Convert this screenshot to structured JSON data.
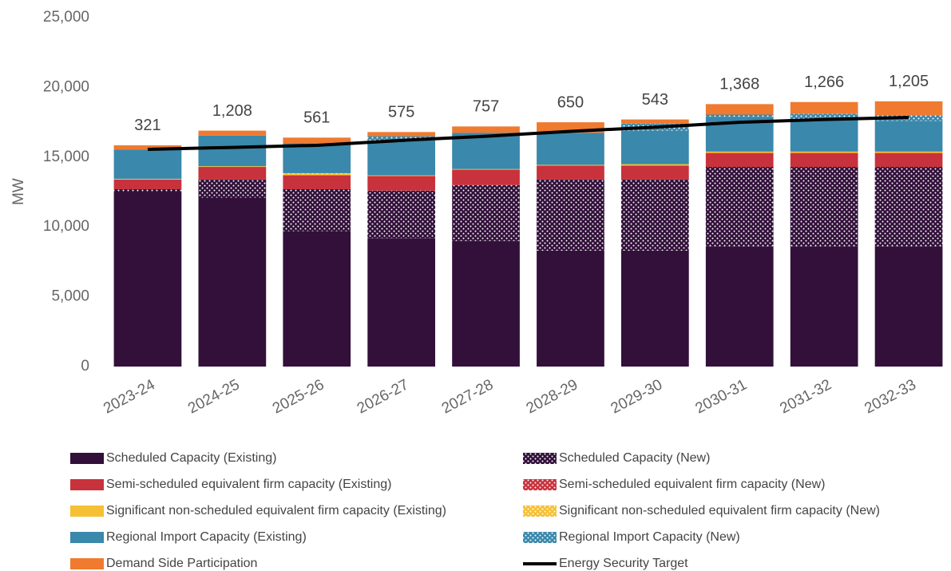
{
  "chart_data": {
    "type": "bar",
    "stacked": true,
    "y_label": "MW",
    "categories": [
      "2023-24",
      "2024-25",
      "2025-26",
      "2026-27",
      "2027-28",
      "2028-29",
      "2029-30",
      "2030-31",
      "2031-32",
      "2032-33"
    ],
    "series": [
      {
        "name": "Scheduled Capacity (Existing)",
        "color": "#32103a",
        "values": [
          12500,
          12100,
          9700,
          9200,
          9000,
          8300,
          8300,
          8600,
          8600,
          8600
        ]
      },
      {
        "name": "Scheduled Capacity (New)",
        "color": "#32103a",
        "pattern": "dots",
        "values": [
          200,
          1300,
          3000,
          3400,
          4000,
          5100,
          5100,
          5700,
          5700,
          5700
        ]
      },
      {
        "name": "Semi-scheduled equivalent firm capacity (Existing)",
        "color": "#c8323c",
        "values": [
          700,
          900,
          1000,
          1050,
          1100,
          1000,
          1000,
          1000,
          1000,
          1000
        ]
      },
      {
        "name": "Semi-scheduled equivalent firm capacity (New)",
        "color": "#c8323c",
        "pattern": "dots",
        "values": [
          0,
          0,
          0,
          0,
          0,
          0,
          0,
          0,
          0,
          0
        ]
      },
      {
        "name": "Significant non-scheduled equivalent firm capacity (Existing)",
        "color": "#f5c033",
        "values": [
          50,
          50,
          100,
          50,
          50,
          50,
          100,
          100,
          100,
          100
        ]
      },
      {
        "name": "Significant non-scheduled equivalent firm capacity (New)",
        "color": "#f5c033",
        "pattern": "dots",
        "values": [
          0,
          0,
          50,
          0,
          0,
          0,
          0,
          0,
          0,
          0
        ]
      },
      {
        "name": "Regional Import Capacity (Existing)",
        "color": "#3a88ab",
        "values": [
          2100,
          2200,
          2150,
          2500,
          2600,
          2300,
          2400,
          2500,
          2300,
          2200
        ]
      },
      {
        "name": "Regional Import Capacity (New)",
        "color": "#3a88ab",
        "pattern": "dots",
        "values": [
          0,
          0,
          0,
          300,
          0,
          0,
          500,
          150,
          400,
          400
        ]
      },
      {
        "name": "Demand Side Participation",
        "color": "#ef7a30",
        "values": [
          300,
          350,
          400,
          300,
          450,
          750,
          300,
          750,
          850,
          1000
        ]
      },
      {
        "name": "Energy Security Target",
        "color": "#000000",
        "type": "line",
        "values": [
          15560,
          15700,
          15850,
          16200,
          16500,
          16850,
          17150,
          17500,
          17700,
          17850
        ]
      }
    ],
    "annotations": {
      "values": [
        321,
        1208,
        561,
        575,
        757,
        650,
        543,
        1368,
        1266,
        1205
      ],
      "value_labels": [
        "321",
        "1,208",
        "561",
        "575",
        "757",
        "650",
        "543",
        "1,368",
        "1,266",
        "1,205"
      ]
    },
    "ylim": [
      0,
      25000
    ],
    "yticks": [
      0,
      {
        "value": 5000,
        "label": "5,000"
      },
      {
        "value": 10000,
        "label": "10,000"
      },
      {
        "value": 15000,
        "label": "15,000"
      },
      {
        "value": 20000,
        "label": "20,000"
      },
      {
        "value": 25000,
        "label": "25,000"
      }
    ],
    "grid": false
  }
}
